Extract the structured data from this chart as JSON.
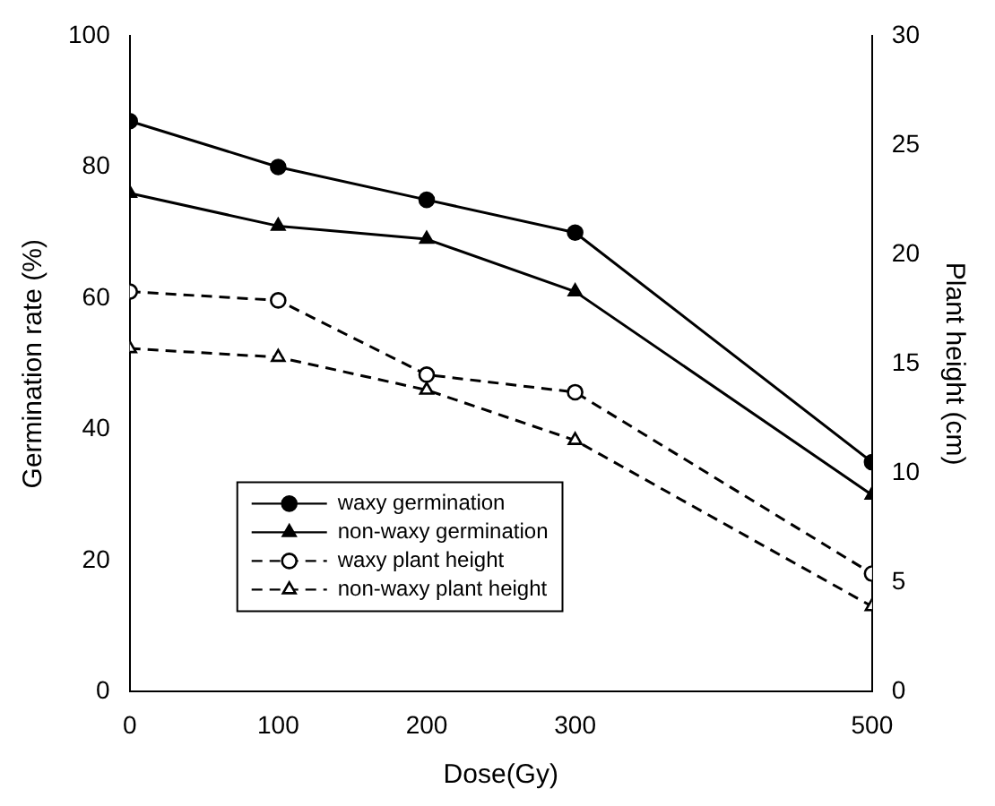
{
  "chart_data": {
    "type": "line",
    "xlabel": "Dose(Gy)",
    "ylabel": "Germination rate (%)",
    "y2label": "Plant height (cm)",
    "x": [
      0,
      100,
      200,
      300,
      500
    ],
    "xlim": [
      0,
      500
    ],
    "xticks": [
      0,
      100,
      200,
      300,
      500
    ],
    "ylim": [
      0,
      100
    ],
    "yticks": [
      0,
      20,
      40,
      60,
      80,
      100
    ],
    "y2lim": [
      0,
      30
    ],
    "y2ticks": [
      0,
      5,
      10,
      15,
      20,
      25,
      30
    ],
    "grid": false,
    "legend": "bottom left",
    "series": [
      {
        "name": "waxy germination",
        "color": "#000000",
        "marker": "circle",
        "line_style": "solid",
        "values": [
          87,
          80,
          75,
          70,
          35
        ]
      },
      {
        "name": "non-waxy germination",
        "color": "#000000",
        "marker": "triangle",
        "line_style": "solid",
        "values": [
          76,
          71,
          69,
          61,
          30
        ]
      },
      {
        "name": "waxy plant height",
        "color": "#000000",
        "marker": "circle",
        "line_style": "dashed",
        "axis": "y2",
        "values": [
          18.3,
          17.9,
          14.5,
          13.7,
          5.4
        ]
      },
      {
        "name": "non-waxy plant height",
        "color": "#000000",
        "marker": "triangle",
        "line_style": "dashed",
        "axis": "y2",
        "values": [
          15.7,
          15.3,
          13.8,
          11.5,
          3.9
        ]
      }
    ]
  }
}
